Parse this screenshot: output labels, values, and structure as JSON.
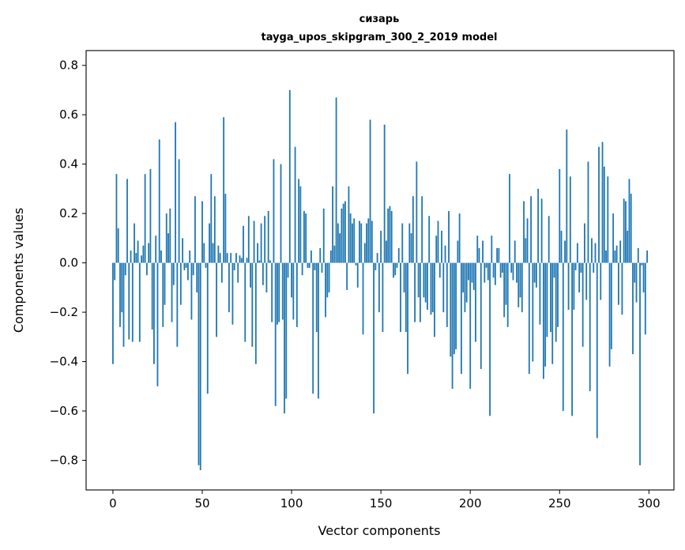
{
  "chart_data": {
    "type": "bar",
    "title": "сизарь",
    "subtitle": "tayga_upos_skipgram_300_2_2019 model",
    "xlabel": "Vector components",
    "ylabel": "Components values",
    "xlim": [
      -15,
      314
    ],
    "ylim": [
      -0.92,
      0.86
    ],
    "xticks": [
      0,
      50,
      100,
      150,
      200,
      250,
      300
    ],
    "yticks": [
      -0.8,
      -0.6,
      -0.4,
      -0.2,
      0.0,
      0.2,
      0.4,
      0.6,
      0.8
    ],
    "bar_color": "#1f77b4",
    "values": [
      -0.41,
      -0.07,
      0.36,
      0.14,
      -0.26,
      -0.2,
      -0.34,
      -0.05,
      0.34,
      -0.31,
      0.05,
      -0.32,
      0.16,
      0.04,
      0.09,
      -0.32,
      0.03,
      0.07,
      0.36,
      -0.05,
      0.08,
      0.38,
      -0.27,
      -0.41,
      0.11,
      -0.5,
      0.5,
      0.05,
      -0.26,
      -0.17,
      0.2,
      0.12,
      0.22,
      -0.24,
      -0.09,
      0.57,
      -0.34,
      0.42,
      -0.17,
      0.1,
      -0.03,
      -0.02,
      -0.07,
      0.05,
      -0.23,
      -0.05,
      0.27,
      -0.12,
      -0.82,
      -0.84,
      0.25,
      0.08,
      -0.02,
      -0.53,
      0.16,
      0.36,
      0.08,
      0.27,
      -0.3,
      0.07,
      0.04,
      -0.08,
      0.59,
      0.28,
      0.04,
      -0.2,
      0.04,
      -0.25,
      -0.03,
      0.04,
      -0.08,
      0.03,
      0.02,
      0.15,
      -0.32,
      0.02,
      0.19,
      -0.1,
      -0.34,
      0.17,
      -0.41,
      0.08,
      0.01,
      0.16,
      -0.09,
      0.19,
      -0.12,
      0.21,
      0.01,
      -0.24,
      0.42,
      -0.58,
      -0.25,
      -0.24,
      0.4,
      -0.23,
      -0.61,
      -0.55,
      -0.06,
      0.7,
      -0.14,
      -0.23,
      0.47,
      -0.26,
      0.34,
      0.31,
      -0.05,
      0.21,
      0.2,
      -0.02,
      -0.02,
      0.05,
      -0.53,
      -0.03,
      -0.28,
      -0.55,
      0.06,
      -0.04,
      0.22,
      -0.22,
      -0.14,
      -0.12,
      0.05,
      0.31,
      0.07,
      0.67,
      0.16,
      0.12,
      0.22,
      0.24,
      0.25,
      -0.11,
      0.31,
      0.2,
      0.16,
      0.18,
      -0.01,
      -0.1,
      0.17,
      0.16,
      -0.29,
      0.08,
      0.16,
      0.18,
      0.58,
      0.17,
      -0.61,
      -0.03,
      0.04,
      -0.2,
      0.13,
      -0.28,
      0.56,
      0.09,
      0.22,
      0.23,
      0.21,
      -0.06,
      -0.05,
      -0.02,
      0.06,
      -0.28,
      0.16,
      -0.12,
      -0.28,
      -0.45,
      0.16,
      0.12,
      0.27,
      -0.24,
      0.41,
      -0.14,
      -0.24,
      0.27,
      -0.14,
      -0.16,
      -0.19,
      0.19,
      -0.21,
      -0.2,
      -0.3,
      0.11,
      0.17,
      -0.06,
      0.13,
      -0.2,
      0.07,
      -0.26,
      0.21,
      -0.38,
      -0.51,
      -0.37,
      -0.35,
      0.09,
      0.2,
      -0.45,
      -0.12,
      -0.2,
      -0.16,
      -0.07,
      -0.51,
      -0.08,
      -0.11,
      -0.32,
      0.11,
      0.06,
      -0.43,
      0.09,
      -0.08,
      -0.02,
      -0.07,
      -0.62,
      0.11,
      -0.06,
      -0.09,
      0.06,
      0.06,
      -0.06,
      -0.04,
      -0.22,
      -0.17,
      -0.26,
      0.36,
      -0.04,
      -0.07,
      0.09,
      -0.08,
      -0.18,
      -0.14,
      -0.2,
      0.25,
      0.1,
      0.18,
      -0.45,
      0.27,
      -0.4,
      -0.08,
      -0.1,
      0.3,
      -0.25,
      0.26,
      -0.47,
      -0.42,
      -0.3,
      0.19,
      -0.28,
      -0.41,
      -0.06,
      -0.32,
      -0.26,
      0.38,
      0.13,
      -0.6,
      0.09,
      0.54,
      -0.19,
      0.35,
      -0.62,
      -0.19,
      -0.03,
      0.08,
      -0.12,
      -0.04,
      -0.34,
      0.16,
      -0.15,
      0.41,
      -0.52,
      0.1,
      -0.04,
      0.08,
      -0.71,
      0.47,
      -0.15,
      0.49,
      0.39,
      0.05,
      0.35,
      -0.42,
      -0.35,
      0.2,
      0.05,
      0.07,
      -0.17,
      0.09,
      -0.21,
      0.26,
      0.25,
      0.13,
      0.34,
      0.28,
      -0.37,
      -0.08,
      -0.16,
      0.06,
      -0.82,
      -0.01,
      -0.12,
      -0.29,
      0.05
    ],
    "n_values": 300
  }
}
